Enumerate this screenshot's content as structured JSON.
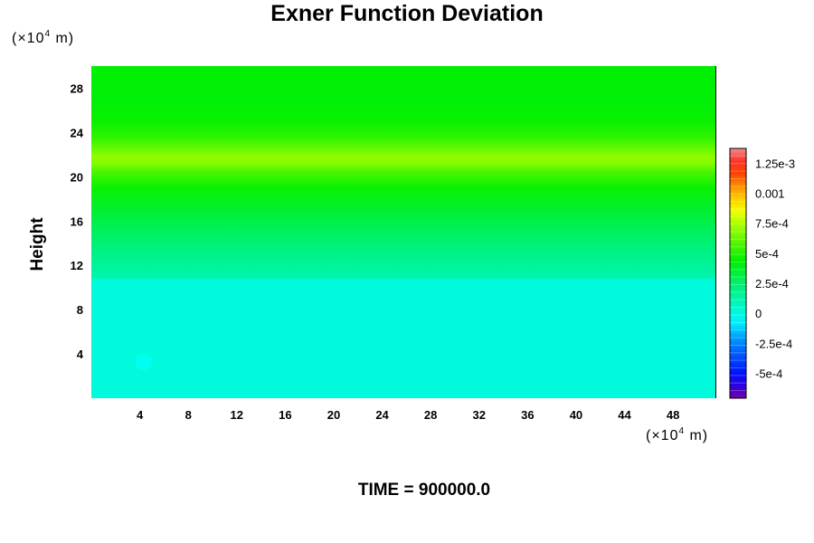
{
  "chart_data": {
    "type": "heatmap",
    "title": "Exner Function Deviation",
    "ylabel": "Height",
    "xlabel": "",
    "x_unit": {
      "prefix": "(×10",
      "exponent": "4",
      "suffix": " m)"
    },
    "y_unit": {
      "prefix": "(×10",
      "exponent": "4",
      "suffix": " m)"
    },
    "xlim": [
      0,
      51.5
    ],
    "ylim": [
      0,
      30
    ],
    "x_ticks": [
      "4",
      "8",
      "12",
      "16",
      "20",
      "24",
      "28",
      "32",
      "36",
      "40",
      "44",
      "48"
    ],
    "y_ticks": [
      "4",
      "8",
      "12",
      "16",
      "20",
      "24",
      "28"
    ],
    "colorbar": {
      "min": -0.0007,
      "max": 0.00138,
      "ticks": [
        "1.25e-3",
        "0.001",
        "7.5e-4",
        "5e-4",
        "2.5e-4",
        "0",
        "-2.5e-4",
        "-5e-4"
      ],
      "tick_values": [
        0.00125,
        0.001,
        0.00075,
        0.0005,
        0.00025,
        0,
        -0.00025,
        -0.0005
      ]
    },
    "profile": [
      {
        "height": 0,
        "value": 2e-05
      },
      {
        "height": 10.6,
        "value": 2e-05
      },
      {
        "height": 11.0,
        "value": 0.00013
      },
      {
        "height": 13.0,
        "value": 0.0002
      },
      {
        "height": 15.0,
        "value": 0.00028
      },
      {
        "height": 17.0,
        "value": 0.00036
      },
      {
        "height": 19.0,
        "value": 0.00046
      },
      {
        "height": 20.5,
        "value": 0.00058
      },
      {
        "height": 21.2,
        "value": 0.00068
      },
      {
        "height": 21.8,
        "value": 0.0007
      },
      {
        "height": 22.5,
        "value": 0.00063
      },
      {
        "height": 23.5,
        "value": 0.00053
      },
      {
        "height": 25.0,
        "value": 0.00046
      },
      {
        "height": 27.0,
        "value": 0.00043
      },
      {
        "height": 30.0,
        "value": 0.00044
      }
    ],
    "features": [
      {
        "x": 4.3,
        "y": 3.3,
        "value": -3e-05
      }
    ]
  },
  "time_label": "TIME = 900000.0"
}
